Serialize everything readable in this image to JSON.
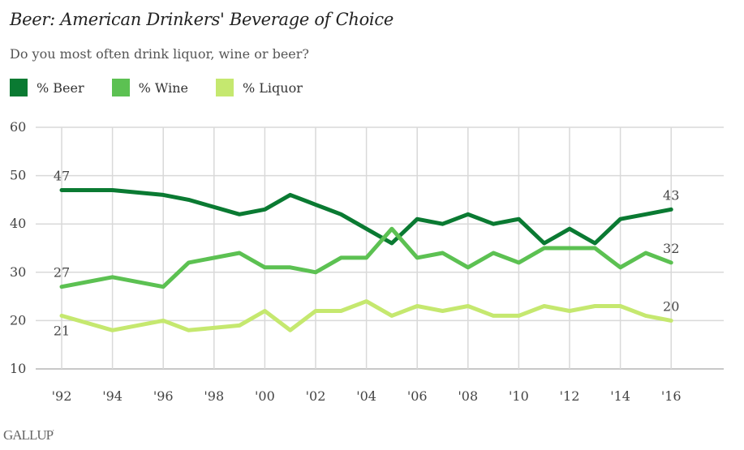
{
  "chart_data": {
    "type": "line",
    "title": "Beer: American Drinkers' Beverage of Choice",
    "subtitle": "Do you most often drink liquor, wine or beer?",
    "xlabel": "",
    "ylabel": "",
    "ylim": [
      10,
      60
    ],
    "xlim": [
      1992,
      2018
    ],
    "yticks": [
      10,
      20,
      30,
      40,
      50,
      60
    ],
    "xticks": [
      {
        "year": 1992,
        "label": "'92"
      },
      {
        "year": 1994,
        "label": "'94"
      },
      {
        "year": 1996,
        "label": "'96"
      },
      {
        "year": 1998,
        "label": "'98"
      },
      {
        "year": 2000,
        "label": "'00"
      },
      {
        "year": 2002,
        "label": "'02"
      },
      {
        "year": 2004,
        "label": "'04"
      },
      {
        "year": 2006,
        "label": "'06"
      },
      {
        "year": 2008,
        "label": "'08"
      },
      {
        "year": 2010,
        "label": "'10"
      },
      {
        "year": 2012,
        "label": "'12"
      },
      {
        "year": 2014,
        "label": "'14"
      },
      {
        "year": 2016,
        "label": "'16"
      }
    ],
    "grid": true,
    "legend_position": "top-left",
    "series": [
      {
        "name": "% Beer",
        "color": "#0a7a32",
        "x": [
          1992,
          1994,
          1996,
          1997,
          1999,
          2000,
          2001,
          2002,
          2003,
          2004,
          2005,
          2006,
          2007,
          2008,
          2009,
          2010,
          2011,
          2012,
          2013,
          2014,
          2015,
          2016
        ],
        "values": [
          47,
          47,
          46,
          45,
          42,
          43,
          46,
          44,
          42,
          39,
          36,
          41,
          40,
          42,
          40,
          41,
          36,
          39,
          36,
          41,
          42,
          43
        ],
        "labels": [
          {
            "index": 0,
            "text": "47",
            "position": "above"
          },
          {
            "index": 21,
            "text": "43",
            "position": "above"
          }
        ]
      },
      {
        "name": "% Wine",
        "color": "#5cc152",
        "x": [
          1992,
          1994,
          1996,
          1997,
          1999,
          2000,
          2001,
          2002,
          2003,
          2004,
          2005,
          2006,
          2007,
          2008,
          2009,
          2010,
          2011,
          2012,
          2013,
          2014,
          2015,
          2016
        ],
        "values": [
          27,
          29,
          27,
          32,
          34,
          31,
          31,
          30,
          33,
          33,
          39,
          33,
          34,
          31,
          34,
          32,
          35,
          35,
          35,
          31,
          34,
          32
        ],
        "labels": [
          {
            "index": 0,
            "text": "27",
            "position": "above"
          },
          {
            "index": 21,
            "text": "32",
            "position": "above"
          }
        ]
      },
      {
        "name": "% Liquor",
        "color": "#c5e86f",
        "x": [
          1992,
          1994,
          1996,
          1997,
          1999,
          2000,
          2001,
          2002,
          2003,
          2004,
          2005,
          2006,
          2007,
          2008,
          2009,
          2010,
          2011,
          2012,
          2013,
          2014,
          2015,
          2016
        ],
        "values": [
          21,
          18,
          20,
          18,
          19,
          22,
          18,
          22,
          22,
          24,
          21,
          23,
          22,
          23,
          21,
          21,
          23,
          22,
          23,
          23,
          21,
          20
        ],
        "labels": [
          {
            "index": 0,
            "text": "21",
            "position": "below"
          },
          {
            "index": 21,
            "text": "20",
            "position": "above"
          }
        ]
      }
    ]
  },
  "footer": {
    "logo_text": "GALLUP",
    "logo_mark": "'"
  }
}
